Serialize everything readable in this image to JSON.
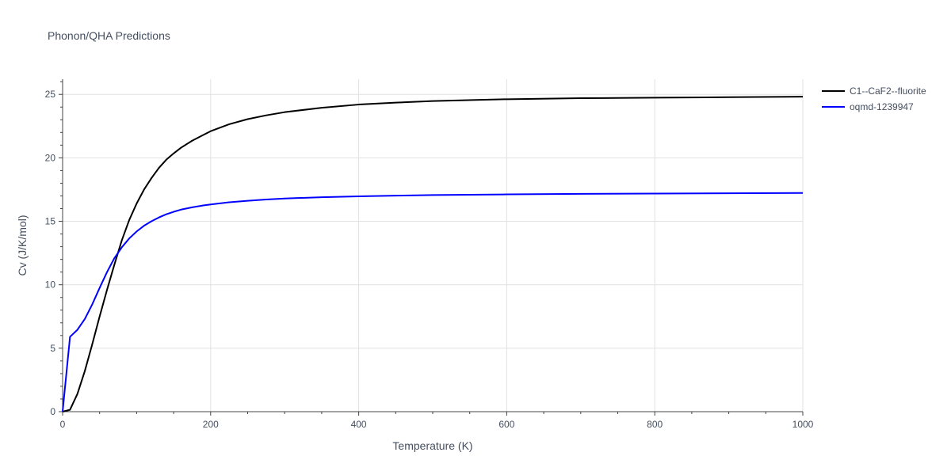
{
  "chart_data": {
    "type": "line",
    "title": "Phonon/QHA Predictions",
    "xlabel": "Temperature (K)",
    "ylabel": "Cv (J/K/mol)",
    "xlim": [
      0,
      1000
    ],
    "ylim": [
      0,
      26.2
    ],
    "x_ticks": [
      0,
      200,
      400,
      600,
      800,
      1000
    ],
    "y_ticks": [
      0,
      5,
      10,
      15,
      20,
      25
    ],
    "grid": true,
    "legend_position": "top-right",
    "series": [
      {
        "name": "C1--CaF2--fluorite",
        "color": "#000000",
        "x": [
          0,
          10,
          20,
          30,
          40,
          50,
          60,
          70,
          80,
          90,
          100,
          110,
          120,
          130,
          140,
          150,
          160,
          175,
          190,
          200,
          225,
          250,
          275,
          300,
          350,
          400,
          450,
          500,
          600,
          700,
          800,
          900,
          1000
        ],
        "y": [
          0,
          0.15,
          1.4,
          3.2,
          5.3,
          7.5,
          9.6,
          11.6,
          13.5,
          15.1,
          16.4,
          17.5,
          18.4,
          19.2,
          19.85,
          20.35,
          20.8,
          21.35,
          21.8,
          22.1,
          22.65,
          23.05,
          23.35,
          23.6,
          23.95,
          24.2,
          24.35,
          24.48,
          24.62,
          24.7,
          24.74,
          24.78,
          24.82
        ]
      },
      {
        "name": "oqmd-1239947",
        "color": "#0000ff",
        "x": [
          0,
          10,
          20,
          30,
          40,
          50,
          60,
          70,
          80,
          90,
          100,
          110,
          120,
          130,
          140,
          150,
          160,
          175,
          190,
          200,
          225,
          250,
          275,
          300,
          350,
          400,
          450,
          500,
          600,
          700,
          800,
          900,
          1000
        ],
        "y": [
          0,
          5.9,
          6.45,
          7.3,
          8.45,
          9.75,
          11.0,
          12.1,
          12.95,
          13.65,
          14.2,
          14.65,
          15.0,
          15.3,
          15.55,
          15.75,
          15.92,
          16.1,
          16.25,
          16.33,
          16.5,
          16.62,
          16.72,
          16.8,
          16.9,
          16.97,
          17.02,
          17.07,
          17.12,
          17.16,
          17.19,
          17.21,
          17.23
        ]
      }
    ]
  }
}
